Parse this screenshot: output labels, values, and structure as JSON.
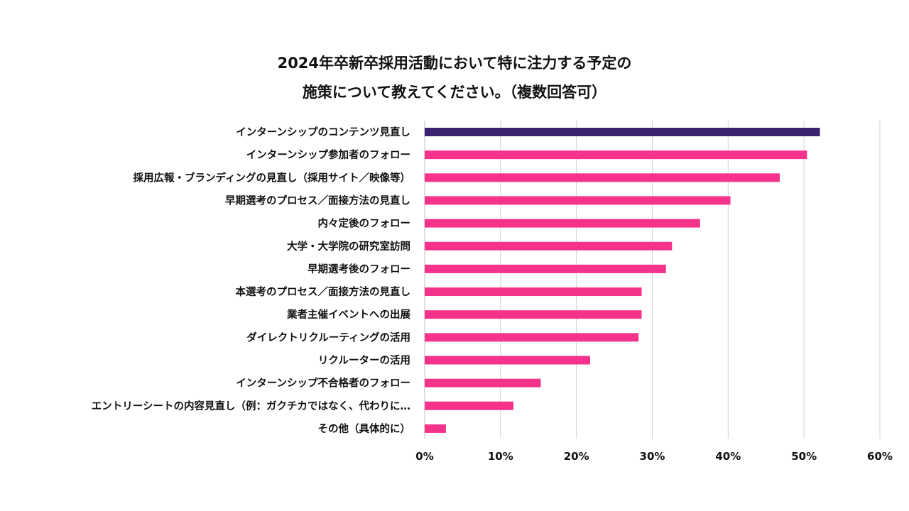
{
  "chart_data": {
    "type": "bar",
    "orientation": "horizontal",
    "title_lines": [
      "2024年卒新卒採用活動において特に注力する予定の",
      "施策について教えてください。（複数回答可）"
    ],
    "categories": [
      "インターンシップのコンテンツ見直し",
      "インターンシップ参加者のフォロー",
      "採用広報・ブランディングの見直し（採用サイト／映像等）",
      "早期選考のプロセス／面接方法の見直し",
      "内々定後のフォロー",
      "大学・大学院の研究室訪問",
      "早期選考後のフォロー",
      "本選考のプロセス／面接方法の見直し",
      "業者主催イベントへの出展",
      "ダイレクトリクルーティングの活用",
      "リクルーターの活用",
      "インターンシップ不合格者のフォロー",
      "エントリーシートの内容見直し（例：ガクチカではなく、代わりに…",
      "その他（具体的に）"
    ],
    "values": [
      52.1,
      50.4,
      46.8,
      40.3,
      36.3,
      32.6,
      31.8,
      28.6,
      28.6,
      28.2,
      21.8,
      15.3,
      11.7,
      2.8
    ],
    "xlim": [
      0,
      60
    ],
    "xticks": [
      "0%",
      "10%",
      "20%",
      "30%",
      "40%",
      "50%",
      "60%"
    ],
    "xtick_values": [
      0,
      10,
      20,
      30,
      40,
      50,
      60
    ],
    "grid": true,
    "colors": {
      "highlight": "#3b2370",
      "default": "#f5338a",
      "grid": "#d0d0d0",
      "axis": "#bfbfbf"
    }
  }
}
